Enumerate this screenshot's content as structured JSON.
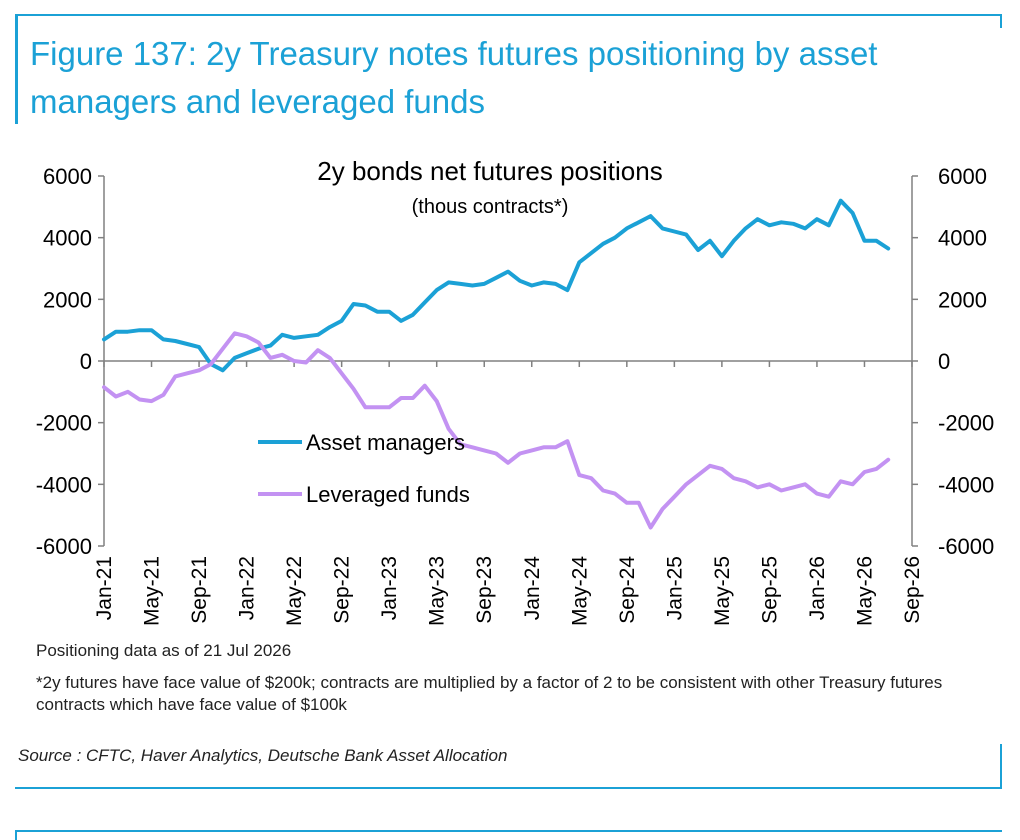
{
  "figure_title": "Figure 137: 2y Treasury notes futures positioning by asset managers and leveraged funds",
  "notes": {
    "as_of": "Positioning data as of 21 Jul 2026",
    "footnote": "*2y futures have face value of $200k; contracts are multiplied by a factor of 2 to be consistent with other Treasury futures contracts which have face value of $100k"
  },
  "source": "Source : CFTC, Haver Analytics, Deutsche Bank Asset Allocation",
  "colors": {
    "accent": "#1ba1d6",
    "asset_managers": "#1ba1d6",
    "leveraged_funds": "#c392f2",
    "axis": "#808080"
  },
  "chart_data": {
    "type": "line",
    "title": "2y bonds net futures positions",
    "subtitle": "(thous contracts*)",
    "ylim": [
      -6000,
      6000
    ],
    "yticks": [
      -6000,
      -4000,
      -2000,
      0,
      2000,
      4000,
      6000
    ],
    "ytick_labels": [
      "-6000",
      "-4000",
      "-2000",
      "0",
      "2000",
      "4000",
      "6000"
    ],
    "secondary_ytick_labels": [
      "-6000",
      "-4000",
      "-2000",
      "0",
      "2000",
      "4000",
      "6000"
    ],
    "x_ticks": [
      "Jan-21",
      "May-21",
      "Sep-21",
      "Jan-22",
      "May-22",
      "Sep-22",
      "Jan-23",
      "May-23",
      "Sep-23",
      "Jan-24",
      "May-24",
      "Sep-24",
      "Jan-25",
      "May-25",
      "Sep-25",
      "Jan-26",
      "May-26",
      "Sep-26"
    ],
    "legend_position": "center-left",
    "grid": false,
    "series": [
      {
        "name": "Asset managers",
        "x": [
          "2021-01",
          "2021-02",
          "2021-03",
          "2021-04",
          "2021-05",
          "2021-06",
          "2021-07",
          "2021-08",
          "2021-09",
          "2021-10",
          "2021-11",
          "2021-12",
          "2022-01",
          "2022-02",
          "2022-03",
          "2022-04",
          "2022-05",
          "2022-06",
          "2022-07",
          "2022-08",
          "2022-09",
          "2022-10",
          "2022-11",
          "2022-12",
          "2023-01",
          "2023-02",
          "2023-03",
          "2023-04",
          "2023-05",
          "2023-06",
          "2023-07",
          "2023-08",
          "2023-09",
          "2023-10",
          "2023-11",
          "2023-12",
          "2024-01",
          "2024-02",
          "2024-03",
          "2024-04",
          "2024-05",
          "2024-06",
          "2024-07",
          "2024-08",
          "2024-09",
          "2024-10",
          "2024-11",
          "2024-12",
          "2025-01",
          "2025-02",
          "2025-03",
          "2025-04",
          "2025-05",
          "2025-06",
          "2025-07",
          "2025-08",
          "2025-09",
          "2025-10",
          "2025-11",
          "2025-12",
          "2026-01",
          "2026-02",
          "2026-03",
          "2026-04",
          "2026-05",
          "2026-06",
          "2026-07"
        ],
        "values": [
          700,
          950,
          950,
          1000,
          1000,
          700,
          650,
          550,
          450,
          -100,
          -300,
          100,
          250,
          400,
          500,
          850,
          750,
          800,
          850,
          1100,
          1300,
          1850,
          1800,
          1600,
          1600,
          1300,
          1500,
          1900,
          2300,
          2550,
          2500,
          2450,
          2500,
          2700,
          2900,
          2600,
          2450,
          2550,
          2500,
          2300,
          3200,
          3500,
          3800,
          4000,
          4300,
          4500,
          4700,
          4300,
          4200,
          4100,
          3600,
          3900,
          3400,
          3900,
          4300,
          4600,
          4400,
          4500,
          4450,
          4300,
          4600,
          4400,
          5200,
          4800,
          3900,
          3900,
          3650
        ]
      },
      {
        "name": "Leveraged funds",
        "x": [
          "2021-01",
          "2021-02",
          "2021-03",
          "2021-04",
          "2021-05",
          "2021-06",
          "2021-07",
          "2021-08",
          "2021-09",
          "2021-10",
          "2021-11",
          "2021-12",
          "2022-01",
          "2022-02",
          "2022-03",
          "2022-04",
          "2022-05",
          "2022-06",
          "2022-07",
          "2022-08",
          "2022-09",
          "2022-10",
          "2022-11",
          "2022-12",
          "2023-01",
          "2023-02",
          "2023-03",
          "2023-04",
          "2023-05",
          "2023-06",
          "2023-07",
          "2023-08",
          "2023-09",
          "2023-10",
          "2023-11",
          "2023-12",
          "2024-01",
          "2024-02",
          "2024-03",
          "2024-04",
          "2024-05",
          "2024-06",
          "2024-07",
          "2024-08",
          "2024-09",
          "2024-10",
          "2024-11",
          "2024-12",
          "2025-01",
          "2025-02",
          "2025-03",
          "2025-04",
          "2025-05",
          "2025-06",
          "2025-07",
          "2025-08",
          "2025-09",
          "2025-10",
          "2025-11",
          "2025-12",
          "2026-01",
          "2026-02",
          "2026-03",
          "2026-04",
          "2026-05",
          "2026-06",
          "2026-07"
        ],
        "values": [
          -850,
          -1150,
          -1000,
          -1250,
          -1300,
          -1100,
          -500,
          -400,
          -300,
          -100,
          400,
          900,
          800,
          600,
          100,
          200,
          0,
          -50,
          350,
          100,
          -400,
          -900,
          -1500,
          -1500,
          -1500,
          -1200,
          -1200,
          -800,
          -1300,
          -2200,
          -2700,
          -2800,
          -2900,
          -3000,
          -3300,
          -3000,
          -2900,
          -2800,
          -2800,
          -2600,
          -3700,
          -3800,
          -4200,
          -4300,
          -4600,
          -4600,
          -5400,
          -4800,
          -4400,
          -4000,
          -3700,
          -3400,
          -3500,
          -3800,
          -3900,
          -4100,
          -4000,
          -4200,
          -4100,
          -4000,
          -4300,
          -4400,
          -3900,
          -4000,
          -3600,
          -3500,
          -3200
        ]
      }
    ]
  }
}
